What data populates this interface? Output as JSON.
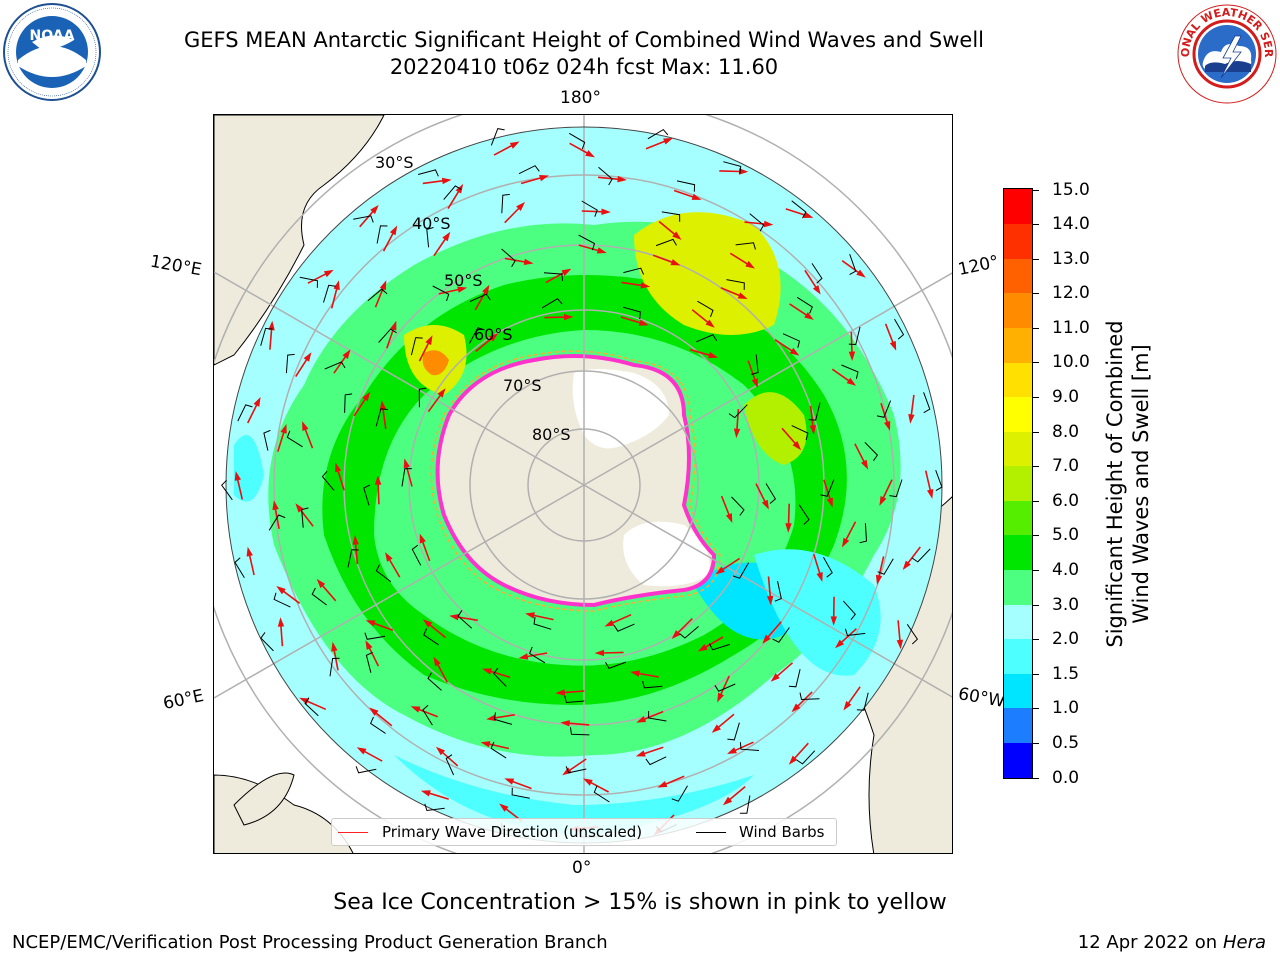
{
  "title": {
    "line1": "GEFS MEAN Antarctic Significant Height of Combined Wind Waves and Swell",
    "line2": "20220410 t06z 024h fcst   Max: 11.60"
  },
  "logos": {
    "left": {
      "icon": "noaa-logo",
      "text": "NOAA"
    },
    "right": {
      "icon": "nws-logo",
      "text": "NATIONAL WEATHER SERVICE"
    }
  },
  "map": {
    "projection": "south-polar-stereographic",
    "longitude_labels": {
      "top": "180°",
      "upper_left": "120°E",
      "upper_right": "120°",
      "lower_left": "60°E",
      "lower_right": "60°W",
      "bottom": "0°"
    },
    "latitude_labels": [
      "30°S",
      "40°S",
      "50°S",
      "60°S",
      "70°S",
      "80°S"
    ],
    "colors": {
      "land": "#efebdc",
      "ice_shelf": "#ffffff",
      "grid": "#b0b0b0",
      "arrow": "#e81010",
      "barb": "#000000",
      "sea_ice_edge": [
        "#ff33cc",
        "#ffaa33"
      ]
    }
  },
  "legend": {
    "primary_wave": "Primary Wave Direction (unscaled)",
    "wind_barbs": "Wind Barbs"
  },
  "colorbar": {
    "label": "Significant Height of Combined\nWind Waves and Swell [m]",
    "ticks": [
      "0.0",
      "0.5",
      "1.0",
      "1.5",
      "2.0",
      "3.0",
      "4.0",
      "5.0",
      "6.0",
      "7.0",
      "8.0",
      "9.0",
      "10.0",
      "11.0",
      "12.0",
      "13.0",
      "14.0",
      "15.0"
    ],
    "colors": [
      "#0000ff",
      "#1c7dff",
      "#00e5ff",
      "#4dffff",
      "#a6ffff",
      "#4dff80",
      "#00e600",
      "#55ee00",
      "#b3f000",
      "#dcf000",
      "#ffff00",
      "#ffe000",
      "#ffb000",
      "#ff8c00",
      "#ff6000",
      "#ff3000",
      "#ff0000"
    ]
  },
  "notes": {
    "sea_ice": "Sea Ice Concentration > 15% is shown in pink to yellow"
  },
  "footer": {
    "left": "NCEP/EMC/Verification Post Processing Product Generation Branch",
    "right_prefix": "12 Apr 2022 on ",
    "right_host": "Hera"
  }
}
